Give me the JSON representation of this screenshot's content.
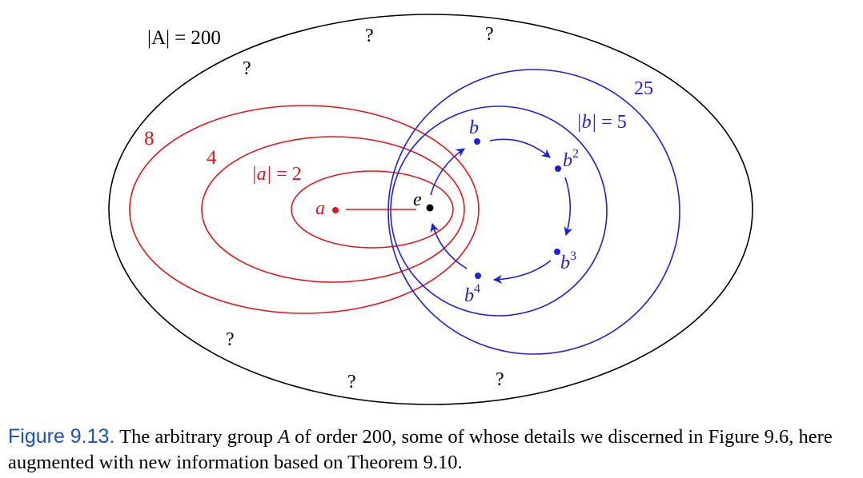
{
  "colors": {
    "outer": "#000000",
    "a_family": "#e8141b",
    "b_family": "#1f1fe0",
    "caption_label": "#1f4fc4"
  },
  "group": {
    "order_lhs": "|A|",
    "order_rhs": "= 200",
    "unknown_mark": "?"
  },
  "subgroup_a": {
    "ring_labels": [
      "8",
      "4"
    ],
    "order_lhs": "|a|",
    "order_rhs": "= 2",
    "element": "a"
  },
  "subgroup_b": {
    "outer_label": "25",
    "order_lhs": "|b|",
    "order_rhs": "= 5",
    "elements": [
      {
        "base": "b",
        "exp": ""
      },
      {
        "base": "b",
        "exp": "2"
      },
      {
        "base": "b",
        "exp": "3"
      },
      {
        "base": "b",
        "exp": "4"
      }
    ]
  },
  "identity": "e",
  "caption": {
    "label": "Figure 9.13.",
    "text_1": " The arbitrary group ",
    "group_symbol": "A",
    "text_2": " of order 200, some of whose details we discerned in Figure 9.6, here augmented with new information based on Theorem 9.10."
  }
}
